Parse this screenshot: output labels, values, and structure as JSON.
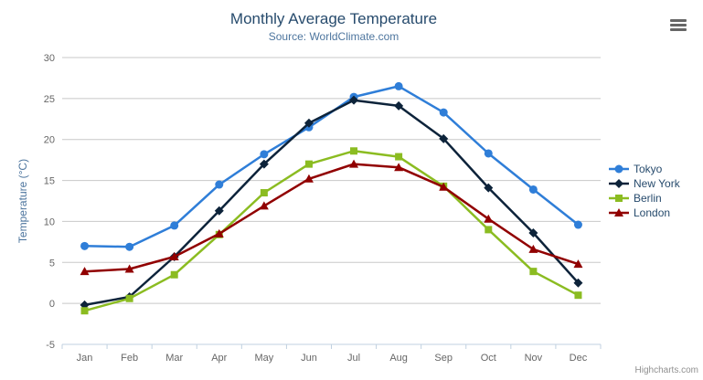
{
  "chart_data": {
    "type": "line",
    "title": "Monthly Average Temperature",
    "subtitle": "Source: WorldClimate.com",
    "xlabel": "",
    "ylabel": "Temperature (°C)",
    "ylim": [
      -5,
      30
    ],
    "ytick_step": 5,
    "grid": true,
    "legend_position": "right",
    "categories": [
      "Jan",
      "Feb",
      "Mar",
      "Apr",
      "May",
      "Jun",
      "Jul",
      "Aug",
      "Sep",
      "Oct",
      "Nov",
      "Dec"
    ],
    "series": [
      {
        "name": "Tokyo",
        "color": "#2f7ed8",
        "marker": "circle",
        "values": [
          7.0,
          6.9,
          9.5,
          14.5,
          18.2,
          21.5,
          25.2,
          26.5,
          23.3,
          18.3,
          13.9,
          9.6
        ]
      },
      {
        "name": "New York",
        "color": "#0d233a",
        "marker": "diamond",
        "values": [
          -0.2,
          0.8,
          5.7,
          11.3,
          17.0,
          22.0,
          24.8,
          24.1,
          20.1,
          14.1,
          8.6,
          2.5
        ]
      },
      {
        "name": "Berlin",
        "color": "#8bbc21",
        "marker": "square",
        "values": [
          -0.9,
          0.6,
          3.5,
          8.4,
          13.5,
          17.0,
          18.6,
          17.9,
          14.3,
          9.0,
          3.9,
          1.0
        ]
      },
      {
        "name": "London",
        "color": "#910000",
        "marker": "triangle",
        "values": [
          3.9,
          4.2,
          5.7,
          8.5,
          11.9,
          15.2,
          17.0,
          16.6,
          14.2,
          10.3,
          6.6,
          4.8
        ]
      }
    ]
  },
  "icons": {
    "context_menu": "hamburger-menu-icon"
  },
  "credits": {
    "label": "Highcharts.com"
  },
  "styles": {
    "grid_color": "#c8c8c8",
    "axis_color": "#c0d0e0",
    "title_color": "#274b6d",
    "subtitle_color": "#4d759e"
  }
}
